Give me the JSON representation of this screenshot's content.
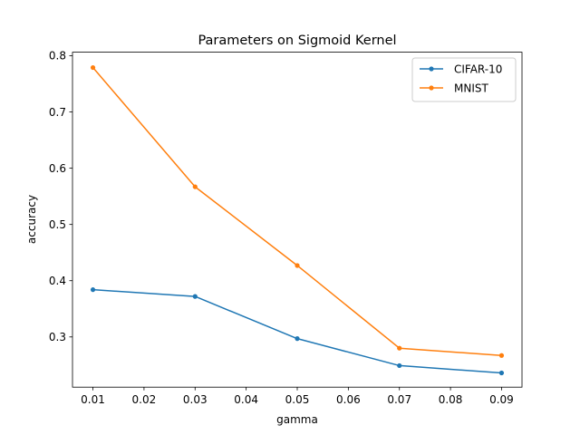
{
  "chart_data": {
    "type": "line",
    "title": "Parameters on Sigmoid Kernel",
    "xlabel": "gamma",
    "ylabel": "accuracy",
    "x": [
      0.01,
      0.03,
      0.05,
      0.07,
      0.09
    ],
    "xlim": [
      0.006,
      0.094
    ],
    "ylim": [
      0.2107,
      0.8063
    ],
    "xticks": [
      0.01,
      0.02,
      0.03,
      0.04,
      0.05,
      0.06,
      0.07,
      0.08,
      0.09
    ],
    "xtick_labels": [
      "0.01",
      "0.02",
      "0.03",
      "0.04",
      "0.05",
      "0.06",
      "0.07",
      "0.08",
      "0.09"
    ],
    "yticks": [
      0.3,
      0.4,
      0.5,
      0.6,
      0.7,
      0.8
    ],
    "ytick_labels": [
      "0.3",
      "0.4",
      "0.5",
      "0.6",
      "0.7",
      "0.8"
    ],
    "grid": false,
    "legend_position": "top-right",
    "series": [
      {
        "name": "CIFAR-10",
        "color": "#1f77b4",
        "values": [
          0.384,
          0.372,
          0.297,
          0.249,
          0.236
        ]
      },
      {
        "name": "MNIST",
        "color": "#ff7f0e",
        "values": [
          0.779,
          0.567,
          0.427,
          0.28,
          0.267
        ]
      }
    ]
  }
}
